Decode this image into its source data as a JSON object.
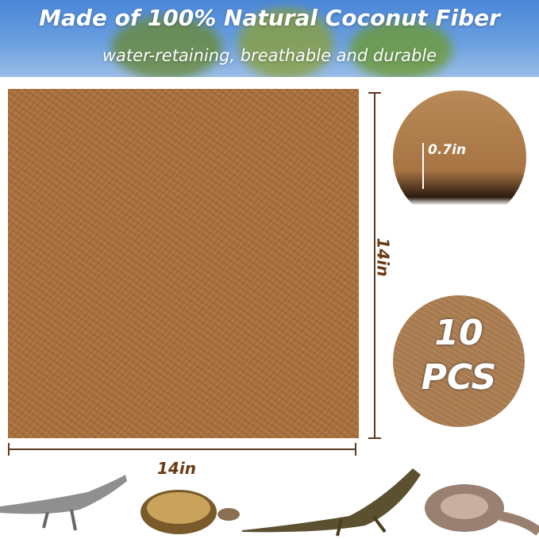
{
  "banner": {
    "title": "Made of 100% Natural Coconut Fiber",
    "subtitle": "water-retaining, breathable and durable"
  },
  "dimensions": {
    "height_label": "14in",
    "width_label": "14in",
    "thickness_label": "0.7in"
  },
  "quantity": {
    "number": "10",
    "unit": "PCS"
  },
  "colors": {
    "banner": "#4a86d8",
    "mat": "#a9713f",
    "dimension_text": "#6b3a16"
  }
}
